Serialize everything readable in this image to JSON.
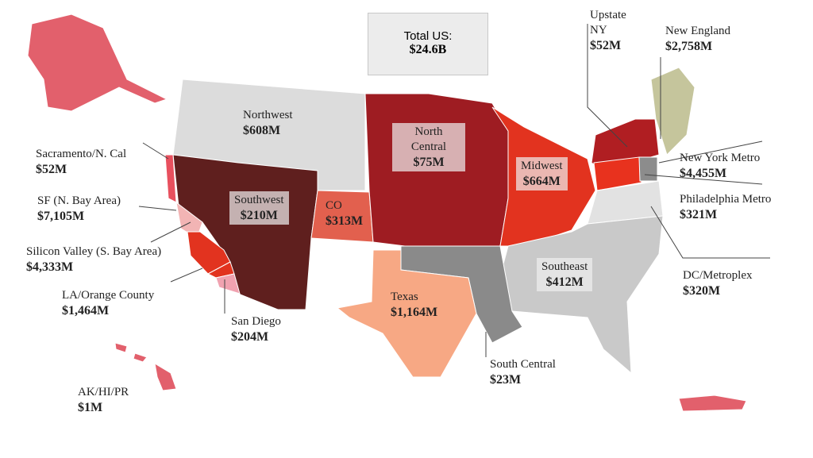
{
  "total": {
    "label": "Total US:",
    "value": "$24.6B"
  },
  "regions": [
    {
      "name": "Upstate NY",
      "value": "$52M",
      "color": "#b01e22"
    },
    {
      "name": "New England",
      "value": "$2,758M",
      "color": "#c5c59c"
    },
    {
      "name": "New York Metro",
      "value": "$4,455M",
      "color": "#8c8c8c"
    },
    {
      "name": "Philadelphia Metro",
      "value": "$321M",
      "color": "#e8321e"
    },
    {
      "name": "DC/Metroplex",
      "value": "$320M",
      "color": "#e2e2e2"
    },
    {
      "name": "Southeast",
      "value": "$412M",
      "color": "#c9c9c9"
    },
    {
      "name": "Midwest",
      "value": "$664M",
      "color": "#e2331f"
    },
    {
      "name": "North Central",
      "value": "$75M",
      "color": "#9e1c22"
    },
    {
      "name": "Northwest",
      "value": "$608M",
      "color": "#dcdcdc"
    },
    {
      "name": "Southwest",
      "value": "$210M",
      "color": "#5f1f1e"
    },
    {
      "name": "CO",
      "value": "$313M",
      "color": "#e2604e"
    },
    {
      "name": "Texas",
      "value": "$1,164M",
      "color": "#f7a884"
    },
    {
      "name": "South Central",
      "value": "$23M",
      "color": "#8a8a8a"
    },
    {
      "name": "San Diego",
      "value": "$204M",
      "color": "#f0a2b0"
    },
    {
      "name": "LA/Orange County",
      "value": "$1,464M",
      "color": "#e2331f"
    },
    {
      "name": "Silicon Valley (S. Bay Area)",
      "value": "$4,333M",
      "color": "#e2331f"
    },
    {
      "name": "SF (N. Bay Area)",
      "value": "$7,105M",
      "color": "#f2b4b4"
    },
    {
      "name": "Sacramento/N. Cal",
      "value": "$52M",
      "color": "#e8505e"
    },
    {
      "name": "AK/HI/PR",
      "value": "$1M",
      "color": "#e2606c"
    }
  ]
}
